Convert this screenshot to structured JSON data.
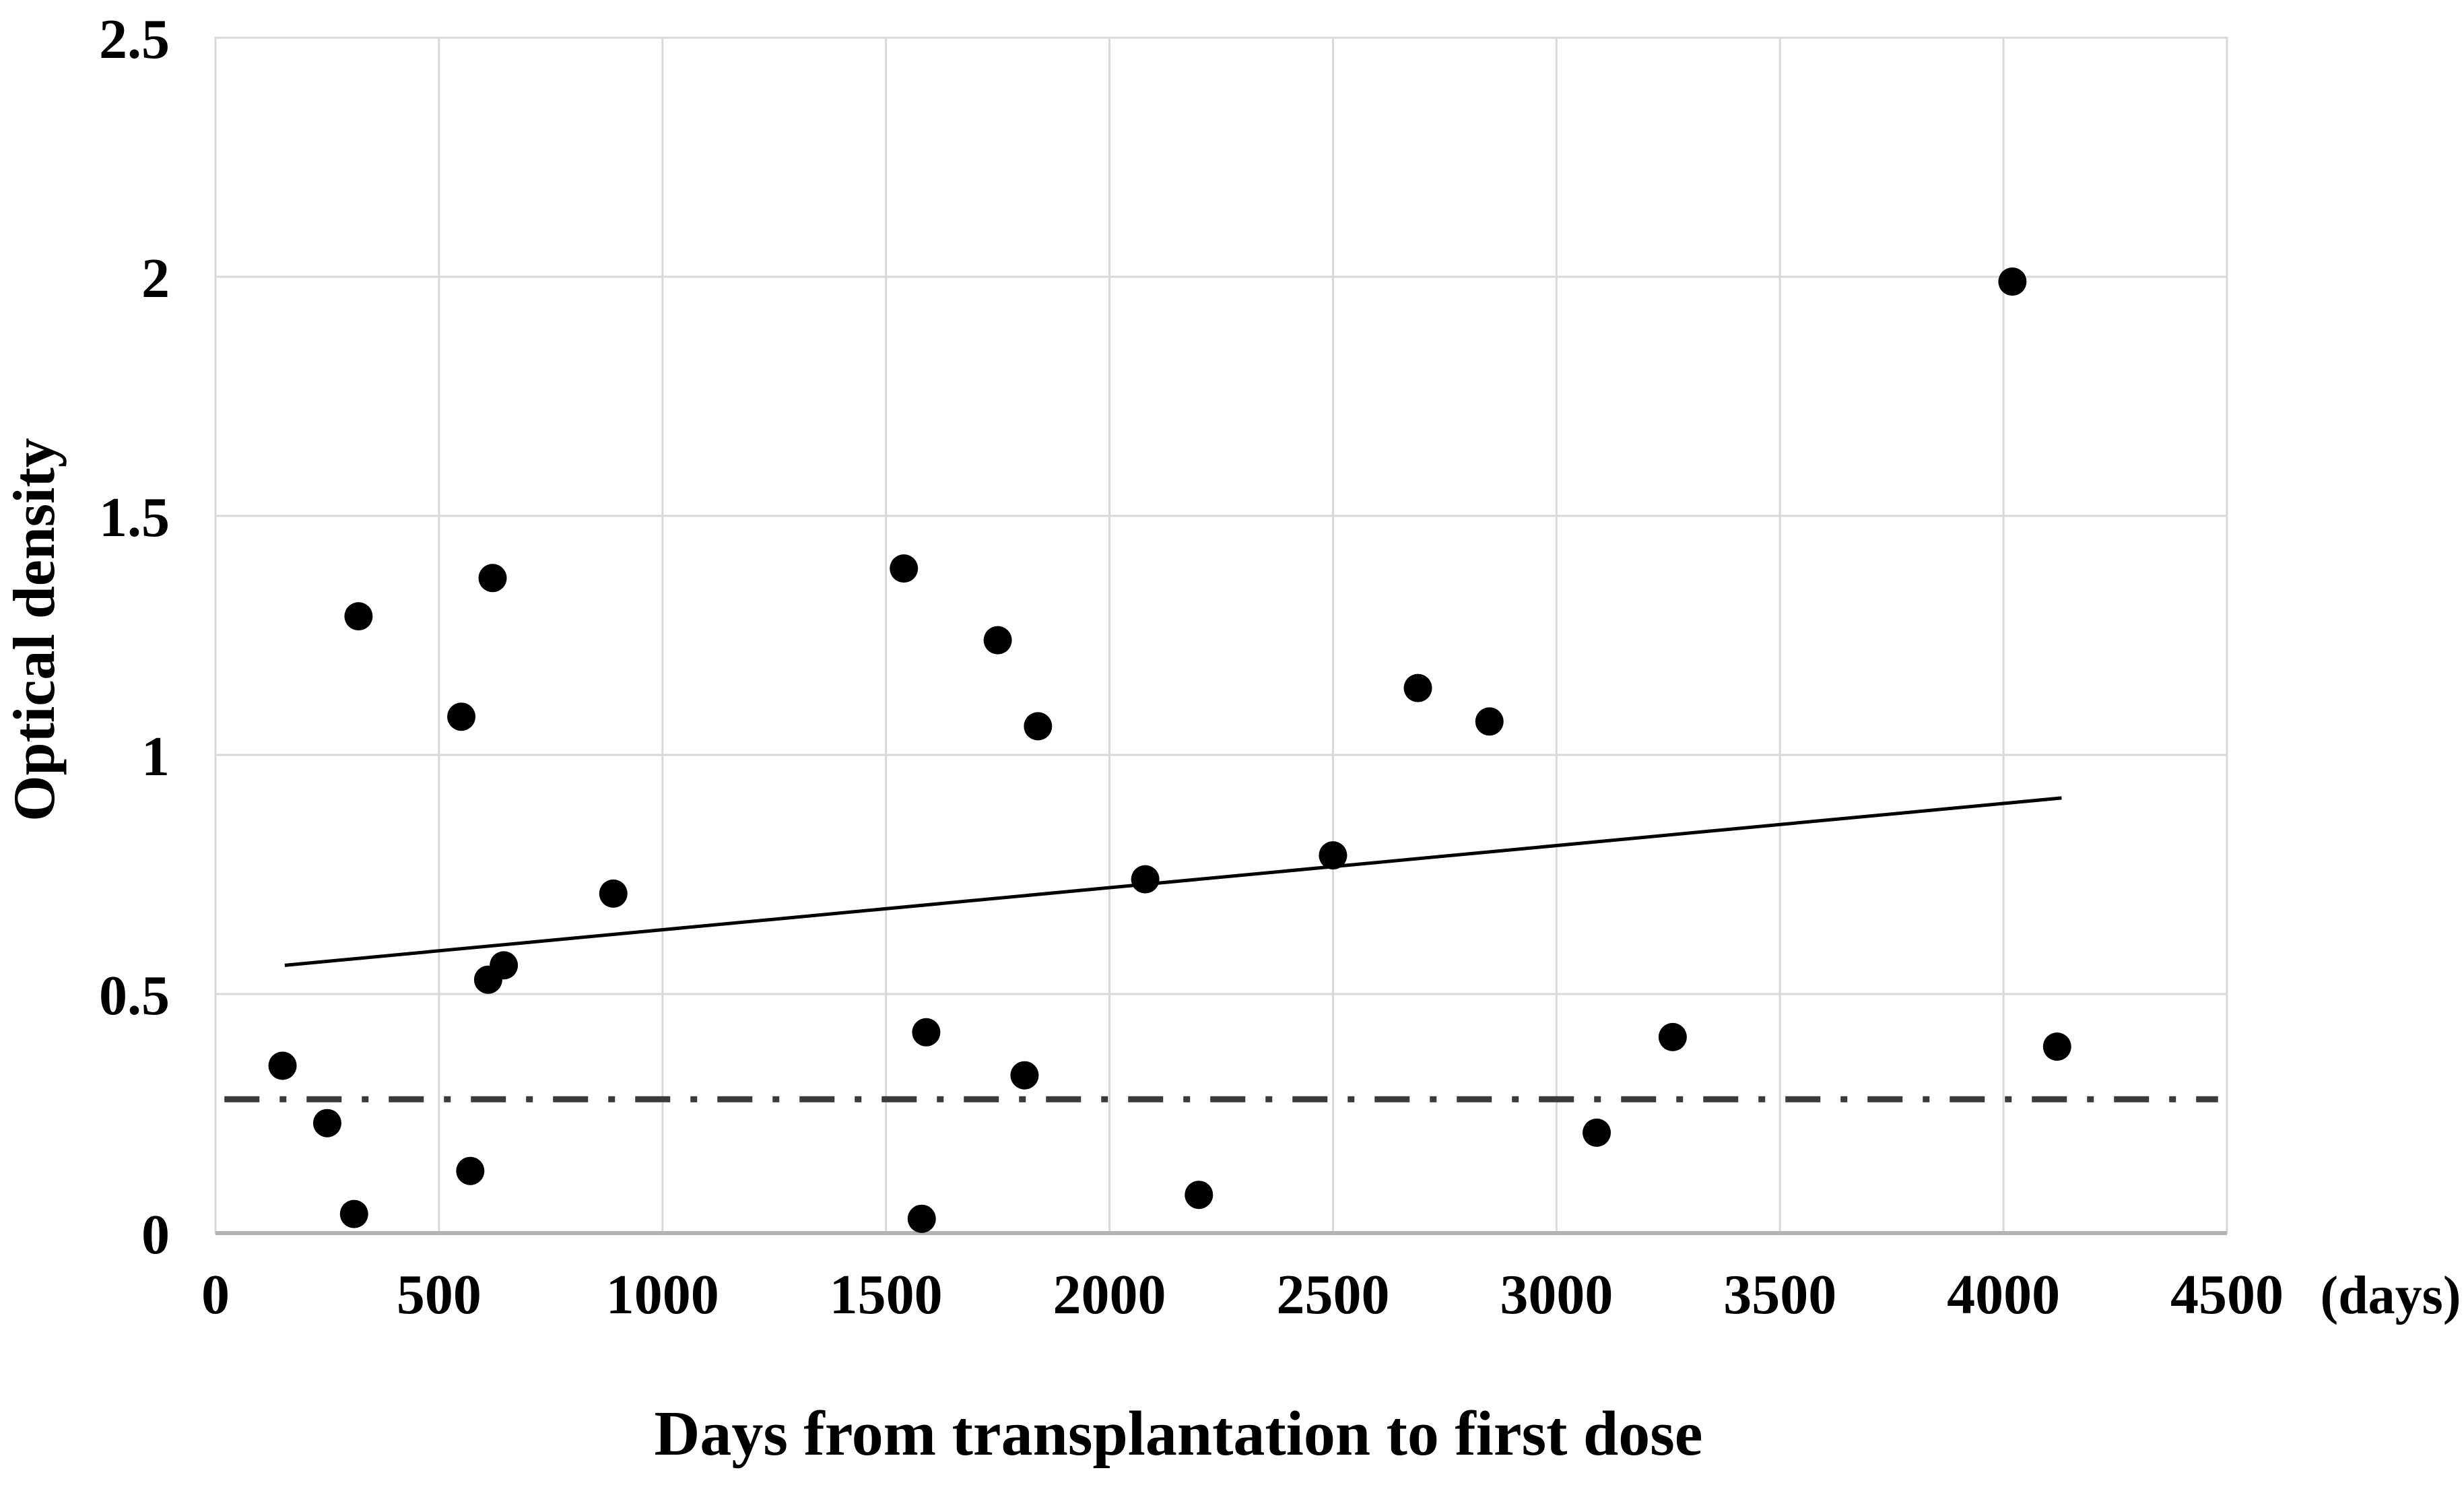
{
  "chart_data": {
    "type": "scatter",
    "title": "",
    "xlabel": "Days from transplantation to first dose",
    "ylabel": "Optical density",
    "x_unit_label": "(days)",
    "xlim": [
      0,
      4500
    ],
    "ylim": [
      0,
      2.5
    ],
    "x_ticks": [
      0,
      500,
      1000,
      1500,
      2000,
      2500,
      3000,
      3500,
      4000,
      4500
    ],
    "y_ticks": [
      "0",
      "0.5",
      "1",
      "1.5",
      "2",
      "2.5"
    ],
    "y_tick_values": [
      0,
      0.5,
      1,
      1.5,
      2,
      2.5
    ],
    "grid": true,
    "legend_position": "none",
    "points": [
      {
        "x": 150,
        "y": 0.35
      },
      {
        "x": 250,
        "y": 0.23
      },
      {
        "x": 310,
        "y": 0.04
      },
      {
        "x": 320,
        "y": 1.29
      },
      {
        "x": 550,
        "y": 1.08
      },
      {
        "x": 570,
        "y": 0.13
      },
      {
        "x": 610,
        "y": 0.53
      },
      {
        "x": 620,
        "y": 1.37
      },
      {
        "x": 645,
        "y": 0.56
      },
      {
        "x": 890,
        "y": 0.71
      },
      {
        "x": 1540,
        "y": 1.39
      },
      {
        "x": 1580,
        "y": 0.03
      },
      {
        "x": 1590,
        "y": 0.42
      },
      {
        "x": 1750,
        "y": 1.24
      },
      {
        "x": 1810,
        "y": 0.33
      },
      {
        "x": 1840,
        "y": 1.06
      },
      {
        "x": 2080,
        "y": 0.74
      },
      {
        "x": 2200,
        "y": 0.08
      },
      {
        "x": 2500,
        "y": 0.79
      },
      {
        "x": 2690,
        "y": 1.14
      },
      {
        "x": 2850,
        "y": 1.07
      },
      {
        "x": 3090,
        "y": 0.21
      },
      {
        "x": 3260,
        "y": 0.41
      },
      {
        "x": 4020,
        "y": 1.99
      },
      {
        "x": 4120,
        "y": 0.39
      }
    ],
    "trend_line": {
      "x1": 155,
      "y1": 0.56,
      "x2": 4130,
      "y2": 0.91
    },
    "cutoff_line": {
      "y": 0.28,
      "style": "dash-dot"
    },
    "colors": {
      "point": "#000000",
      "trend_line": "#000000",
      "cutoff_line": "#3a3a3a",
      "gridline": "#d9d9d9",
      "axis_line": "#b3b3b3",
      "text": "#000000",
      "background": "#ffffff"
    }
  }
}
